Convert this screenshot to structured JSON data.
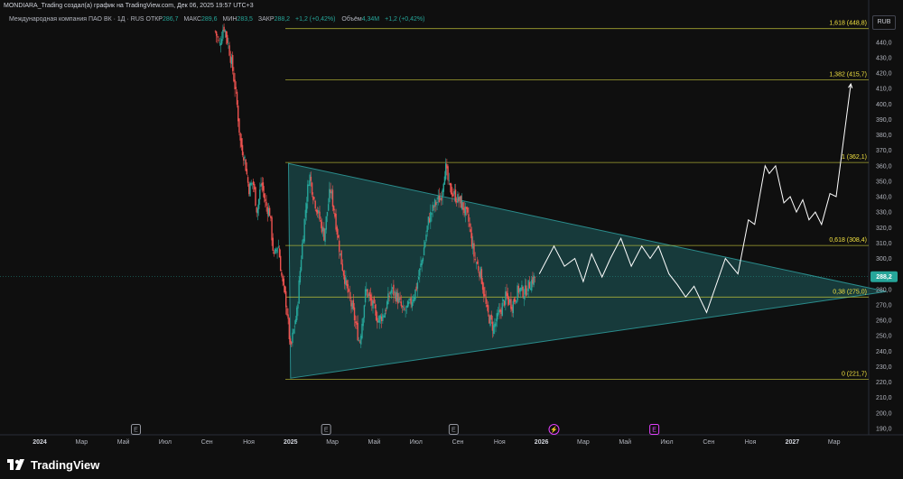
{
  "header": {
    "text": "MONDIARA_Trading создал(а) график на TradingView.com, Дек 06, 2025 19:57 UTC+3"
  },
  "legend": {
    "instrument": "Международная компания ПАО ВК · 1Д · RUS",
    "open_label": "ОТКР",
    "open_value": "286,7",
    "high_label": "МАКС",
    "high_value": "289,6",
    "low_label": "МИН",
    "low_value": "283,5",
    "close_label": "ЗАКР",
    "close_value": "288,2",
    "change": "+1,2 (+0,42%)",
    "volume_label": "Объём",
    "volume_value": "4,34M",
    "volume_change": "+1,2 (+0,42%)"
  },
  "currency": "RUB",
  "branding": "TradingView",
  "colors": {
    "background": "#0f0f0f",
    "up_candle": "#26a69a",
    "down_candle": "#ef5350",
    "fib_line": "#c9c93a",
    "fib_label": "#f0e040",
    "triangle_fill": "#1f5f60",
    "projection": "#ffffff",
    "last_price_badge": "#26a69a"
  },
  "chart_data": {
    "type": "candlestick",
    "y_axis": {
      "ticks": [
        "190,0",
        "200,0",
        "210,0",
        "220,0",
        "230,0",
        "240,0",
        "250,0",
        "260,0",
        "270,0",
        "280,0",
        "290,0",
        "300,0",
        "310,0",
        "320,0",
        "330,0",
        "340,0",
        "350,0",
        "360,0",
        "370,0",
        "380,0",
        "390,0",
        "400,0",
        "410,0",
        "420,0",
        "430,0",
        "440,0"
      ],
      "range": [
        185,
        455
      ],
      "last_price": "288,2"
    },
    "x_axis": {
      "labels": [
        "2024",
        "Мар",
        "Май",
        "Июл",
        "Сен",
        "Ноя",
        "2025",
        "Мар",
        "Май",
        "Июл",
        "Сен",
        "Ноя",
        "2026",
        "Мар",
        "Май",
        "Июл",
        "Сен",
        "Ноя",
        "2027",
        "Мар"
      ],
      "label_months": [
        0,
        2,
        4,
        6,
        8,
        10,
        12,
        14,
        16,
        18,
        20,
        22,
        24,
        26,
        28,
        30,
        32,
        34,
        36,
        38
      ],
      "bold_labels": [
        "2024",
        "2025",
        "2026",
        "2027"
      ],
      "event_markers": [
        {
          "label": "E",
          "month": 4.6,
          "color": "#9598a1"
        },
        {
          "label": "E",
          "month": 13.7,
          "color": "#9598a1"
        },
        {
          "label": "E",
          "month": 19.8,
          "color": "#9598a1"
        },
        {
          "label": "⚡",
          "month": 24.6,
          "color": "#e040fb"
        },
        {
          "label": "E",
          "month": 29.4,
          "color": "#e040fb"
        }
      ]
    },
    "fibonacci_levels": [
      {
        "ratio": "1,618",
        "value": 448.8,
        "label": "1,618 (448,8)"
      },
      {
        "ratio": "1,382",
        "value": 415.7,
        "label": "1,382 (415,7)"
      },
      {
        "ratio": "1",
        "value": 362.1,
        "label": "1 (362,1)"
      },
      {
        "ratio": "0,618",
        "value": 308.4,
        "label": "0,618 (308,4)"
      },
      {
        "ratio": "0,38",
        "value": 275.0,
        "label": "0,38 (275,0)"
      },
      {
        "ratio": "0",
        "value": 221.7,
        "label": "0 (221,7)"
      }
    ],
    "fib_start_month": 11.75,
    "triangle": {
      "points": [
        [
          11.9,
          361.5
        ],
        [
          40.5,
          278.5
        ],
        [
          12.0,
          222.5
        ]
      ]
    },
    "candles_path": [
      [
        8.4,
        447
      ],
      [
        8.6,
        438
      ],
      [
        8.8,
        451
      ],
      [
        9.0,
        440
      ],
      [
        9.2,
        425
      ],
      [
        9.4,
        405
      ],
      [
        9.6,
        375
      ],
      [
        9.8,
        365
      ],
      [
        10.0,
        345
      ],
      [
        10.2,
        350
      ],
      [
        10.4,
        330
      ],
      [
        10.6,
        350
      ],
      [
        10.8,
        335
      ],
      [
        11.0,
        330
      ],
      [
        11.2,
        300
      ],
      [
        11.4,
        310
      ],
      [
        11.6,
        285
      ],
      [
        11.8,
        270
      ],
      [
        12.0,
        240
      ],
      [
        12.1,
        250
      ],
      [
        12.3,
        265
      ],
      [
        12.5,
        300
      ],
      [
        12.7,
        330
      ],
      [
        12.9,
        355
      ],
      [
        13.1,
        340
      ],
      [
        13.3,
        330
      ],
      [
        13.6,
        315
      ],
      [
        13.9,
        345
      ],
      [
        14.1,
        330
      ],
      [
        14.4,
        300
      ],
      [
        14.7,
        280
      ],
      [
        15.0,
        265
      ],
      [
        15.3,
        245
      ],
      [
        15.6,
        280
      ],
      [
        15.9,
        270
      ],
      [
        16.2,
        260
      ],
      [
        16.5,
        265
      ],
      [
        16.8,
        280
      ],
      [
        17.1,
        275
      ],
      [
        17.4,
        265
      ],
      [
        17.7,
        270
      ],
      [
        18.0,
        280
      ],
      [
        18.3,
        300
      ],
      [
        18.6,
        325
      ],
      [
        18.9,
        335
      ],
      [
        19.2,
        340
      ],
      [
        19.4,
        360
      ],
      [
        19.6,
        345
      ],
      [
        19.9,
        340
      ],
      [
        20.2,
        335
      ],
      [
        20.5,
        325
      ],
      [
        20.8,
        300
      ],
      [
        21.1,
        290
      ],
      [
        21.4,
        265
      ],
      [
        21.7,
        255
      ],
      [
        22.0,
        265
      ],
      [
        22.3,
        275
      ],
      [
        22.6,
        270
      ],
      [
        22.9,
        280
      ],
      [
        23.2,
        278
      ],
      [
        23.5,
        285
      ],
      [
        23.7,
        288
      ]
    ],
    "projection_path": [
      [
        23.9,
        290
      ],
      [
        24.6,
        308
      ],
      [
        25.1,
        295
      ],
      [
        25.6,
        300
      ],
      [
        26.0,
        285
      ],
      [
        26.4,
        303
      ],
      [
        26.9,
        288
      ],
      [
        27.3,
        300
      ],
      [
        27.8,
        313
      ],
      [
        28.3,
        295
      ],
      [
        28.8,
        308
      ],
      [
        29.2,
        300
      ],
      [
        29.6,
        308
      ],
      [
        30.1,
        290
      ],
      [
        30.5,
        283
      ],
      [
        30.9,
        275
      ],
      [
        31.3,
        282
      ],
      [
        31.9,
        265
      ],
      [
        32.8,
        300
      ],
      [
        33.4,
        290
      ],
      [
        33.9,
        325
      ],
      [
        34.2,
        322
      ],
      [
        34.7,
        360
      ],
      [
        34.9,
        355
      ],
      [
        35.2,
        360
      ],
      [
        35.6,
        336
      ],
      [
        35.9,
        340
      ],
      [
        36.2,
        330
      ],
      [
        36.5,
        338
      ],
      [
        36.8,
        325
      ],
      [
        37.1,
        330
      ],
      [
        37.4,
        322
      ],
      [
        37.8,
        342
      ],
      [
        38.1,
        340
      ],
      [
        38.8,
        413
      ]
    ]
  }
}
